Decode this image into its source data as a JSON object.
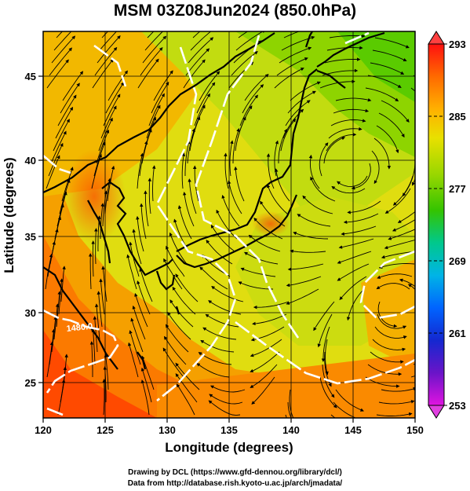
{
  "title": "MSM 03Z08Jun2024 (850.0hPa)",
  "axes": {
    "xlabel": "Longitude (degrees)",
    "ylabel": "Latitude  (degrees)",
    "x_ticks": [
      "120",
      "125",
      "130",
      "135",
      "140",
      "145",
      "150"
    ],
    "y_ticks": [
      "25",
      "30",
      "35",
      "40",
      "45"
    ]
  },
  "colorbar": {
    "labels": [
      "293",
      "285",
      "277",
      "269",
      "261",
      "253"
    ],
    "colors": [
      "#ff1010",
      "#ff6a00",
      "#ffb000",
      "#e8e000",
      "#9ad700",
      "#34c400",
      "#00c88c",
      "#00b4e6",
      "#0064ff",
      "#1428d0",
      "#6a14c8",
      "#e014e0"
    ]
  },
  "contour_labels": [
    "1480.0"
  ],
  "credits": {
    "line1": "Drawing by DCL (https://www.gfd-dennou.org/library/dcl/)",
    "line2": "Data from http://database.rish.kyoto-u.ac.jp/arch/jmadata/"
  },
  "chart_data": {
    "type": "heatmap",
    "title": "MSM 03Z08Jun2024 (850.0hPa)",
    "xlabel": "Longitude (degrees)",
    "ylabel": "Latitude  (degrees)",
    "xlim": [
      120,
      150
    ],
    "ylim": [
      22.4,
      47.6
    ],
    "x_ticks": [
      120,
      125,
      130,
      135,
      140,
      145,
      150
    ],
    "y_ticks": [
      25,
      30,
      35,
      40,
      45
    ],
    "grid": true,
    "colorbar_range": [
      253,
      293
    ],
    "colorbar_ticks": [
      253,
      261,
      269,
      277,
      285,
      293
    ],
    "contour_labels": [
      "1480.0"
    ],
    "overlays": [
      "streamlines",
      "coastlines",
      "height contours"
    ]
  }
}
